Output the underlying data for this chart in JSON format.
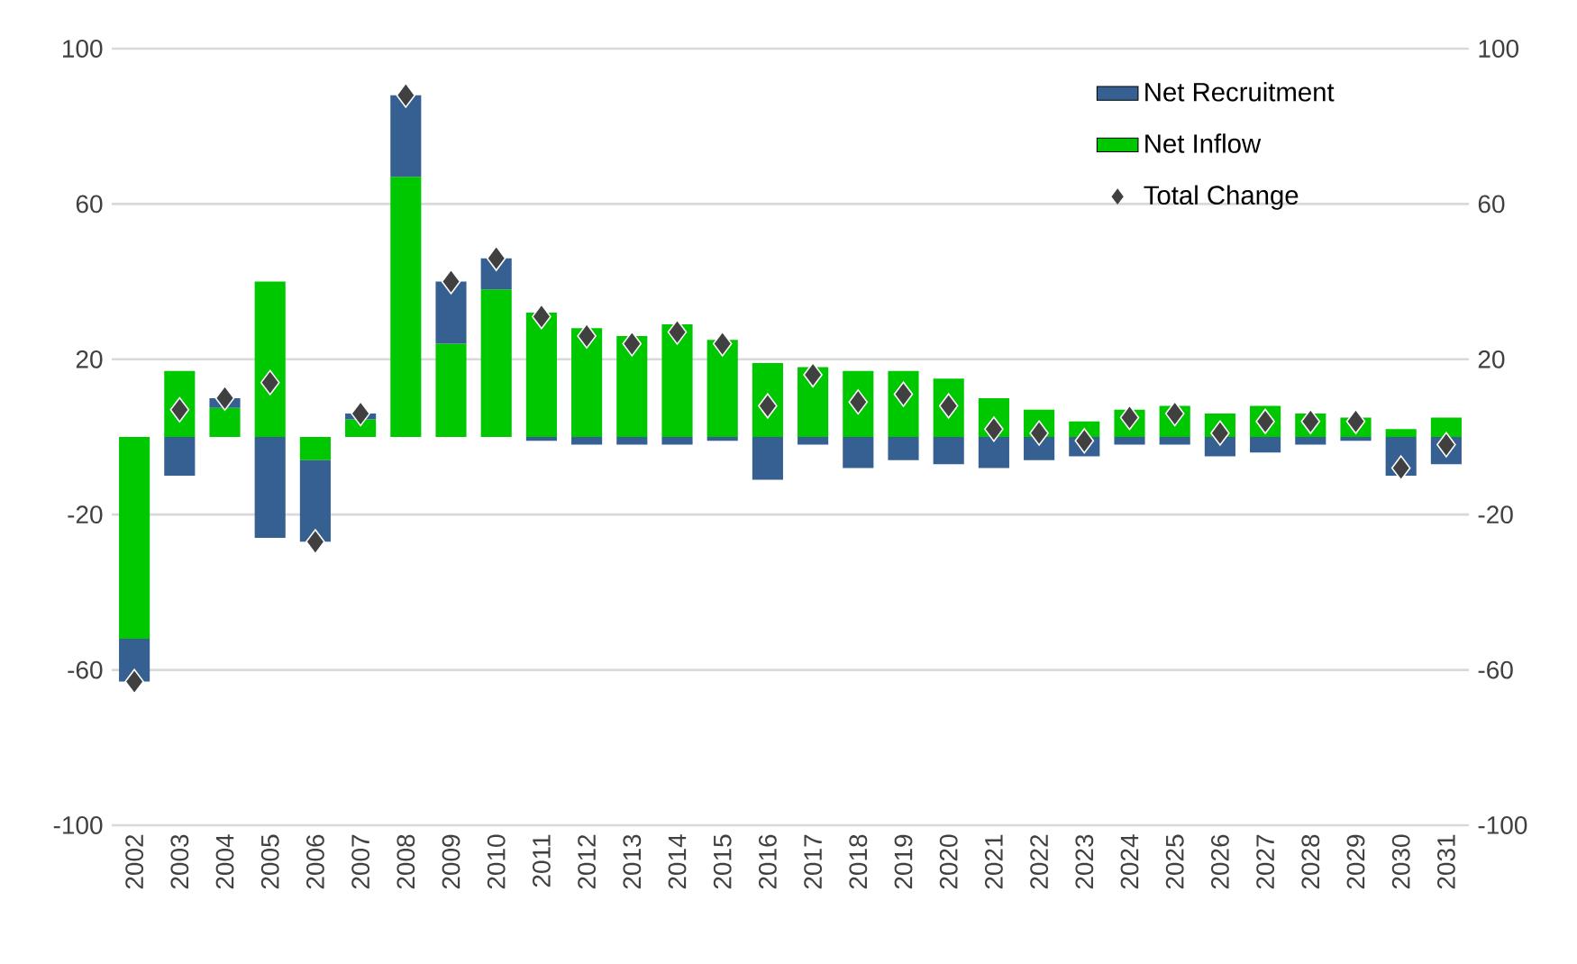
{
  "chart_data": {
    "type": "bar",
    "stacked": true,
    "categories": [
      "2002",
      "2003",
      "2004",
      "2005",
      "2006",
      "2007",
      "2008",
      "2009",
      "2010",
      "2011",
      "2012",
      "2013",
      "2014",
      "2015",
      "2016",
      "2017",
      "2018",
      "2019",
      "2020",
      "2021",
      "2022",
      "2023",
      "2024",
      "2025",
      "2026",
      "2027",
      "2028",
      "2029",
      "2030",
      "2031"
    ],
    "series": [
      {
        "name": "Net Inflow",
        "color": "#00c800",
        "values": [
          -52,
          17,
          7.5,
          40,
          -6,
          4.5,
          67,
          24,
          38,
          32,
          28,
          26,
          29,
          25,
          19,
          18,
          17,
          17,
          15,
          10,
          7,
          4,
          7,
          8,
          6,
          8,
          6,
          5,
          2,
          5
        ]
      },
      {
        "name": "Net Recruitment",
        "color": "#376092",
        "values": [
          -11,
          -10,
          2.5,
          -26,
          -21,
          1.5,
          21,
          16,
          8,
          -1,
          -2,
          -2,
          -2,
          -1,
          -11,
          -2,
          -8,
          -6,
          -7,
          -8,
          -6,
          -5,
          -2,
          -2,
          -5,
          -4,
          -2,
          -1,
          -10,
          -7
        ]
      },
      {
        "name": "Total Change",
        "type": "scatter",
        "marker": "diamond",
        "color": "#404040",
        "values": [
          -63,
          7,
          10,
          14,
          -27,
          6,
          88,
          40,
          46,
          31,
          26,
          24,
          27,
          24,
          8,
          16,
          9,
          11,
          8,
          2,
          1,
          -1,
          5,
          6,
          1,
          4,
          4,
          4,
          -8,
          -2
        ]
      }
    ],
    "ylim": [
      -100,
      100
    ],
    "yticks": [
      -100,
      -60,
      -20,
      20,
      60,
      100
    ],
    "y2lim": [
      -100,
      100
    ],
    "y2ticks": [
      -100,
      -60,
      -20,
      20,
      60,
      100
    ],
    "grid": "y",
    "legend": "top right"
  }
}
